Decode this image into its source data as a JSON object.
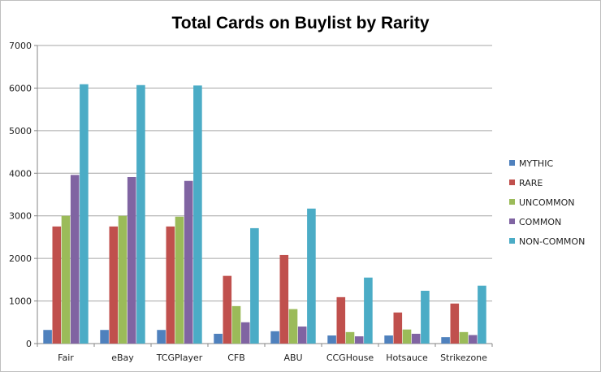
{
  "chart_data": {
    "type": "bar",
    "title": "Total Cards on Buylist by Rarity",
    "categories": [
      "Fair",
      "eBay",
      "TCGPlayer",
      "CFB",
      "ABU",
      "CCGHouse",
      "Hotsauce",
      "Strikezone"
    ],
    "series": [
      {
        "name": "MYTHIC",
        "color": "#4F81BD",
        "values": [
          320,
          320,
          320,
          230,
          290,
          190,
          190,
          150
        ]
      },
      {
        "name": "RARE",
        "color": "#C0504D",
        "values": [
          2750,
          2750,
          2750,
          1590,
          2080,
          1090,
          730,
          940
        ]
      },
      {
        "name": "UNCOMMON",
        "color": "#9BBB59",
        "values": [
          3000,
          3000,
          2980,
          880,
          810,
          270,
          330,
          270
        ]
      },
      {
        "name": "COMMON",
        "color": "#8064A2",
        "values": [
          3960,
          3910,
          3820,
          500,
          400,
          170,
          230,
          200
        ]
      },
      {
        "name": "NON-COMMON",
        "color": "#4BACC6",
        "values": [
          6090,
          6070,
          6060,
          2710,
          3170,
          1550,
          1240,
          1360
        ]
      }
    ],
    "yticks": [
      "0",
      "1000",
      "2000",
      "3000",
      "4000",
      "5000",
      "6000",
      "7000"
    ],
    "ylim": [
      0,
      7000
    ],
    "grid": true,
    "legend": "right"
  }
}
